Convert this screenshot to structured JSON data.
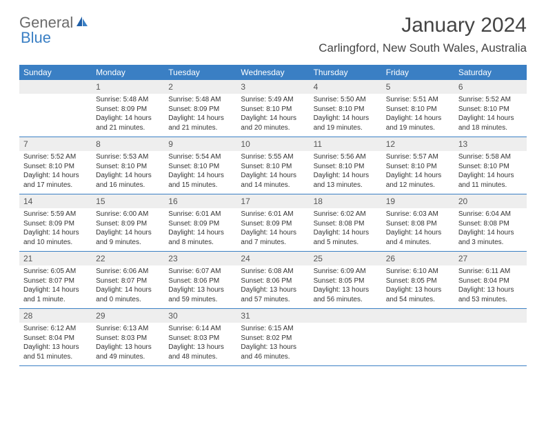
{
  "logo": {
    "part1": "General",
    "part2": "Blue"
  },
  "title": {
    "month_year": "January 2024",
    "location": "Carlingford, New South Wales, Australia"
  },
  "colors": {
    "header_bg": "#3a7fc4",
    "header_text": "#ffffff",
    "daynum_bg": "#eeeeee",
    "border": "#3a7fc4",
    "body_text": "#333333",
    "logo_gray": "#6b6b6b",
    "logo_blue": "#3a7fc4"
  },
  "day_names": [
    "Sunday",
    "Monday",
    "Tuesday",
    "Wednesday",
    "Thursday",
    "Friday",
    "Saturday"
  ],
  "weeks": [
    [
      {
        "day": "",
        "sunrise": "",
        "sunset": "",
        "daylight1": "",
        "daylight2": ""
      },
      {
        "day": "1",
        "sunrise": "Sunrise: 5:48 AM",
        "sunset": "Sunset: 8:09 PM",
        "daylight1": "Daylight: 14 hours",
        "daylight2": "and 21 minutes."
      },
      {
        "day": "2",
        "sunrise": "Sunrise: 5:48 AM",
        "sunset": "Sunset: 8:09 PM",
        "daylight1": "Daylight: 14 hours",
        "daylight2": "and 21 minutes."
      },
      {
        "day": "3",
        "sunrise": "Sunrise: 5:49 AM",
        "sunset": "Sunset: 8:10 PM",
        "daylight1": "Daylight: 14 hours",
        "daylight2": "and 20 minutes."
      },
      {
        "day": "4",
        "sunrise": "Sunrise: 5:50 AM",
        "sunset": "Sunset: 8:10 PM",
        "daylight1": "Daylight: 14 hours",
        "daylight2": "and 19 minutes."
      },
      {
        "day": "5",
        "sunrise": "Sunrise: 5:51 AM",
        "sunset": "Sunset: 8:10 PM",
        "daylight1": "Daylight: 14 hours",
        "daylight2": "and 19 minutes."
      },
      {
        "day": "6",
        "sunrise": "Sunrise: 5:52 AM",
        "sunset": "Sunset: 8:10 PM",
        "daylight1": "Daylight: 14 hours",
        "daylight2": "and 18 minutes."
      }
    ],
    [
      {
        "day": "7",
        "sunrise": "Sunrise: 5:52 AM",
        "sunset": "Sunset: 8:10 PM",
        "daylight1": "Daylight: 14 hours",
        "daylight2": "and 17 minutes."
      },
      {
        "day": "8",
        "sunrise": "Sunrise: 5:53 AM",
        "sunset": "Sunset: 8:10 PM",
        "daylight1": "Daylight: 14 hours",
        "daylight2": "and 16 minutes."
      },
      {
        "day": "9",
        "sunrise": "Sunrise: 5:54 AM",
        "sunset": "Sunset: 8:10 PM",
        "daylight1": "Daylight: 14 hours",
        "daylight2": "and 15 minutes."
      },
      {
        "day": "10",
        "sunrise": "Sunrise: 5:55 AM",
        "sunset": "Sunset: 8:10 PM",
        "daylight1": "Daylight: 14 hours",
        "daylight2": "and 14 minutes."
      },
      {
        "day": "11",
        "sunrise": "Sunrise: 5:56 AM",
        "sunset": "Sunset: 8:10 PM",
        "daylight1": "Daylight: 14 hours",
        "daylight2": "and 13 minutes."
      },
      {
        "day": "12",
        "sunrise": "Sunrise: 5:57 AM",
        "sunset": "Sunset: 8:10 PM",
        "daylight1": "Daylight: 14 hours",
        "daylight2": "and 12 minutes."
      },
      {
        "day": "13",
        "sunrise": "Sunrise: 5:58 AM",
        "sunset": "Sunset: 8:10 PM",
        "daylight1": "Daylight: 14 hours",
        "daylight2": "and 11 minutes."
      }
    ],
    [
      {
        "day": "14",
        "sunrise": "Sunrise: 5:59 AM",
        "sunset": "Sunset: 8:09 PM",
        "daylight1": "Daylight: 14 hours",
        "daylight2": "and 10 minutes."
      },
      {
        "day": "15",
        "sunrise": "Sunrise: 6:00 AM",
        "sunset": "Sunset: 8:09 PM",
        "daylight1": "Daylight: 14 hours",
        "daylight2": "and 9 minutes."
      },
      {
        "day": "16",
        "sunrise": "Sunrise: 6:01 AM",
        "sunset": "Sunset: 8:09 PM",
        "daylight1": "Daylight: 14 hours",
        "daylight2": "and 8 minutes."
      },
      {
        "day": "17",
        "sunrise": "Sunrise: 6:01 AM",
        "sunset": "Sunset: 8:09 PM",
        "daylight1": "Daylight: 14 hours",
        "daylight2": "and 7 minutes."
      },
      {
        "day": "18",
        "sunrise": "Sunrise: 6:02 AM",
        "sunset": "Sunset: 8:08 PM",
        "daylight1": "Daylight: 14 hours",
        "daylight2": "and 5 minutes."
      },
      {
        "day": "19",
        "sunrise": "Sunrise: 6:03 AM",
        "sunset": "Sunset: 8:08 PM",
        "daylight1": "Daylight: 14 hours",
        "daylight2": "and 4 minutes."
      },
      {
        "day": "20",
        "sunrise": "Sunrise: 6:04 AM",
        "sunset": "Sunset: 8:08 PM",
        "daylight1": "Daylight: 14 hours",
        "daylight2": "and 3 minutes."
      }
    ],
    [
      {
        "day": "21",
        "sunrise": "Sunrise: 6:05 AM",
        "sunset": "Sunset: 8:07 PM",
        "daylight1": "Daylight: 14 hours",
        "daylight2": "and 1 minute."
      },
      {
        "day": "22",
        "sunrise": "Sunrise: 6:06 AM",
        "sunset": "Sunset: 8:07 PM",
        "daylight1": "Daylight: 14 hours",
        "daylight2": "and 0 minutes."
      },
      {
        "day": "23",
        "sunrise": "Sunrise: 6:07 AM",
        "sunset": "Sunset: 8:06 PM",
        "daylight1": "Daylight: 13 hours",
        "daylight2": "and 59 minutes."
      },
      {
        "day": "24",
        "sunrise": "Sunrise: 6:08 AM",
        "sunset": "Sunset: 8:06 PM",
        "daylight1": "Daylight: 13 hours",
        "daylight2": "and 57 minutes."
      },
      {
        "day": "25",
        "sunrise": "Sunrise: 6:09 AM",
        "sunset": "Sunset: 8:05 PM",
        "daylight1": "Daylight: 13 hours",
        "daylight2": "and 56 minutes."
      },
      {
        "day": "26",
        "sunrise": "Sunrise: 6:10 AM",
        "sunset": "Sunset: 8:05 PM",
        "daylight1": "Daylight: 13 hours",
        "daylight2": "and 54 minutes."
      },
      {
        "day": "27",
        "sunrise": "Sunrise: 6:11 AM",
        "sunset": "Sunset: 8:04 PM",
        "daylight1": "Daylight: 13 hours",
        "daylight2": "and 53 minutes."
      }
    ],
    [
      {
        "day": "28",
        "sunrise": "Sunrise: 6:12 AM",
        "sunset": "Sunset: 8:04 PM",
        "daylight1": "Daylight: 13 hours",
        "daylight2": "and 51 minutes."
      },
      {
        "day": "29",
        "sunrise": "Sunrise: 6:13 AM",
        "sunset": "Sunset: 8:03 PM",
        "daylight1": "Daylight: 13 hours",
        "daylight2": "and 49 minutes."
      },
      {
        "day": "30",
        "sunrise": "Sunrise: 6:14 AM",
        "sunset": "Sunset: 8:03 PM",
        "daylight1": "Daylight: 13 hours",
        "daylight2": "and 48 minutes."
      },
      {
        "day": "31",
        "sunrise": "Sunrise: 6:15 AM",
        "sunset": "Sunset: 8:02 PM",
        "daylight1": "Daylight: 13 hours",
        "daylight2": "and 46 minutes."
      },
      {
        "day": "",
        "sunrise": "",
        "sunset": "",
        "daylight1": "",
        "daylight2": ""
      },
      {
        "day": "",
        "sunrise": "",
        "sunset": "",
        "daylight1": "",
        "daylight2": ""
      },
      {
        "day": "",
        "sunrise": "",
        "sunset": "",
        "daylight1": "",
        "daylight2": ""
      }
    ]
  ]
}
